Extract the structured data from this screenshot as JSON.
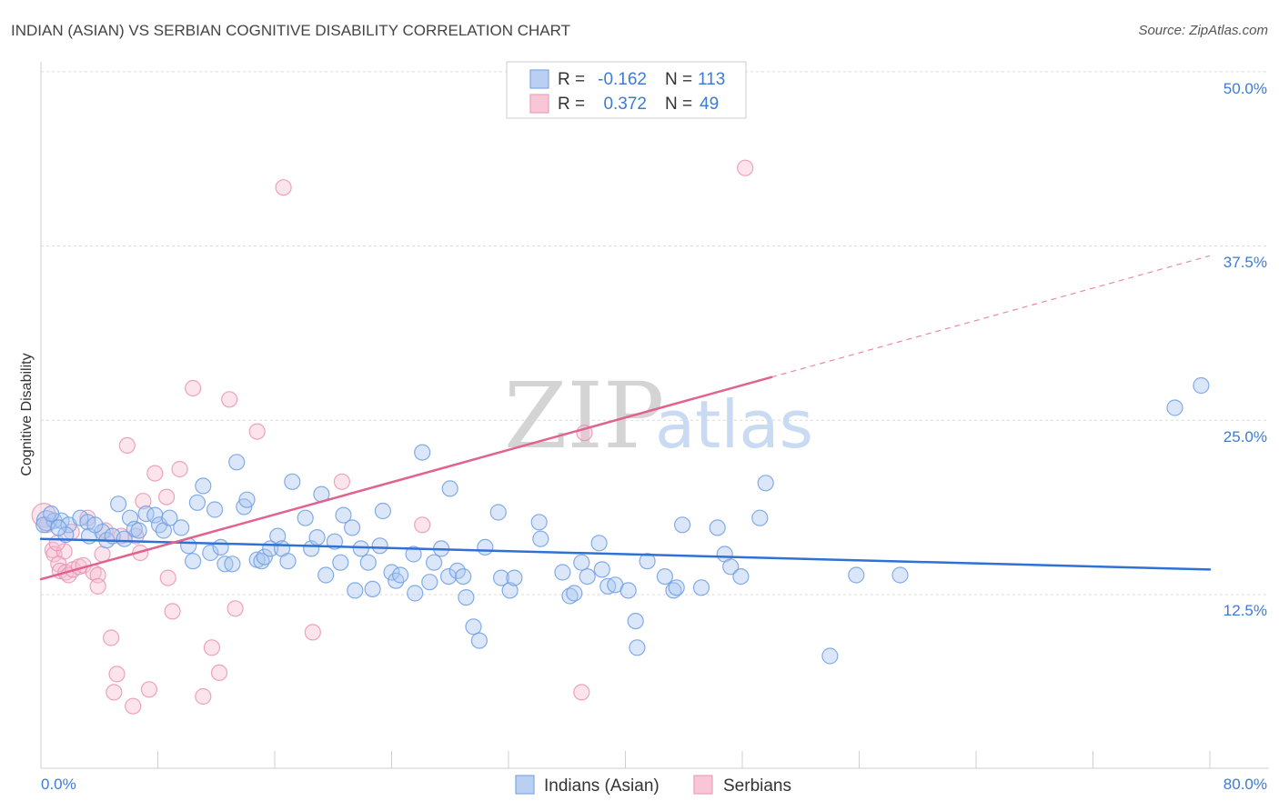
{
  "watermark": {
    "zip": "ZIP",
    "atlas": "atlas"
  },
  "legend": {
    "r_label": "R =",
    "n_label": "N ="
  },
  "colors": {
    "accent": "#3d7bd6",
    "indians_swatch_fill": "#b9d0f3",
    "indians_swatch_stroke": "#7ea8e6",
    "serbians_swatch_fill": "#f8c6d6",
    "serbians_swatch_stroke": "#eaa0b9"
  },
  "chart_data": {
    "type": "scatter",
    "title": "INDIAN (ASIAN) VS SERBIAN COGNITIVE DISABILITY CORRELATION CHART",
    "source": "Source: ZipAtlas.com",
    "xlabel": "",
    "ylabel": "Cognitive Disability",
    "xlim": [
      0,
      80
    ],
    "ylim": [
      0,
      50
    ],
    "x_ticks": [
      0,
      8,
      16,
      24,
      32,
      40,
      48,
      56,
      64,
      72,
      80
    ],
    "x_tick_labels": [
      "0.0%",
      "80.0%"
    ],
    "y_ticks": [
      12.5,
      25,
      37.5,
      50
    ],
    "y_tick_labels": [
      "12.5%",
      "25.0%",
      "37.5%",
      "50.0%"
    ],
    "grid": true,
    "series": [
      {
        "name": "Indians (Asian)",
        "R": "-0.162",
        "N": "113",
        "color": "#6f9fe3",
        "fill": "#a9c6f1",
        "points": [
          [
            0.4,
            17.8
          ],
          [
            0.9,
            17.8
          ],
          [
            1.4,
            17.8
          ],
          [
            0.2,
            17.5
          ],
          [
            1.9,
            17.5
          ],
          [
            2.7,
            18.0
          ],
          [
            3.2,
            17.7
          ],
          [
            1.7,
            16.8
          ],
          [
            3.3,
            16.7
          ],
          [
            4.2,
            17.0
          ],
          [
            4.5,
            16.4
          ],
          [
            4.9,
            16.7
          ],
          [
            5.3,
            19.0
          ],
          [
            6.1,
            18.0
          ],
          [
            6.4,
            17.2
          ],
          [
            6.7,
            17.1
          ],
          [
            5.7,
            16.5
          ],
          [
            7.2,
            18.3
          ],
          [
            7.8,
            18.2
          ],
          [
            8.1,
            17.5
          ],
          [
            8.4,
            17.1
          ],
          [
            8.8,
            18.0
          ],
          [
            9.6,
            17.3
          ],
          [
            10.1,
            16.0
          ],
          [
            10.4,
            14.9
          ],
          [
            11.1,
            20.3
          ],
          [
            10.7,
            19.1
          ],
          [
            11.6,
            15.5
          ],
          [
            11.9,
            18.6
          ],
          [
            12.3,
            15.9
          ],
          [
            12.6,
            14.7
          ],
          [
            13.1,
            14.7
          ],
          [
            13.4,
            22.0
          ],
          [
            13.9,
            18.8
          ],
          [
            14.1,
            19.3
          ],
          [
            14.8,
            15.0
          ],
          [
            15.1,
            14.9
          ],
          [
            15.3,
            15.2
          ],
          [
            15.7,
            15.8
          ],
          [
            16.2,
            16.7
          ],
          [
            16.5,
            15.8
          ],
          [
            16.9,
            14.9
          ],
          [
            17.2,
            20.6
          ],
          [
            18.1,
            18.0
          ],
          [
            18.5,
            15.8
          ],
          [
            18.9,
            16.6
          ],
          [
            19.2,
            19.7
          ],
          [
            19.5,
            13.9
          ],
          [
            20.1,
            16.3
          ],
          [
            20.5,
            14.8
          ],
          [
            20.7,
            18.2
          ],
          [
            21.3,
            17.3
          ],
          [
            21.5,
            12.8
          ],
          [
            21.9,
            15.8
          ],
          [
            22.4,
            14.8
          ],
          [
            22.7,
            12.9
          ],
          [
            23.2,
            16.0
          ],
          [
            23.4,
            18.5
          ],
          [
            24.0,
            14.1
          ],
          [
            24.3,
            13.5
          ],
          [
            24.6,
            13.9
          ],
          [
            25.5,
            15.4
          ],
          [
            25.6,
            12.6
          ],
          [
            26.1,
            22.7
          ],
          [
            26.6,
            13.4
          ],
          [
            26.9,
            14.8
          ],
          [
            27.4,
            15.8
          ],
          [
            27.9,
            13.8
          ],
          [
            28.0,
            20.1
          ],
          [
            28.5,
            14.2
          ],
          [
            28.9,
            13.8
          ],
          [
            29.1,
            12.3
          ],
          [
            29.6,
            10.2
          ],
          [
            30.0,
            9.2
          ],
          [
            30.4,
            15.9
          ],
          [
            31.3,
            18.4
          ],
          [
            31.5,
            13.7
          ],
          [
            32.1,
            12.8
          ],
          [
            32.4,
            13.7
          ],
          [
            34.1,
            17.7
          ],
          [
            34.2,
            16.5
          ],
          [
            35.7,
            14.1
          ],
          [
            36.2,
            12.4
          ],
          [
            36.5,
            12.6
          ],
          [
            37.0,
            14.8
          ],
          [
            37.4,
            13.8
          ],
          [
            38.2,
            16.2
          ],
          [
            38.4,
            14.3
          ],
          [
            38.8,
            13.1
          ],
          [
            39.3,
            13.2
          ],
          [
            40.2,
            12.8
          ],
          [
            40.7,
            10.6
          ],
          [
            40.8,
            8.7
          ],
          [
            41.5,
            14.9
          ],
          [
            42.7,
            13.8
          ],
          [
            43.3,
            12.8
          ],
          [
            43.5,
            13.0
          ],
          [
            43.9,
            17.5
          ],
          [
            45.2,
            13.0
          ],
          [
            46.3,
            17.3
          ],
          [
            46.8,
            15.4
          ],
          [
            47.2,
            14.5
          ],
          [
            47.9,
            13.8
          ],
          [
            49.2,
            18.0
          ],
          [
            49.6,
            20.5
          ],
          [
            54.0,
            8.1
          ],
          [
            55.8,
            13.9
          ],
          [
            58.8,
            13.9
          ],
          [
            77.6,
            25.9
          ],
          [
            79.4,
            27.5
          ],
          [
            0.7,
            18.3
          ],
          [
            1.2,
            17.3
          ],
          [
            3.7,
            17.5
          ]
        ]
      },
      {
        "name": "Serbians",
        "R": "0.372",
        "N": "49",
        "color": "#ea94b3",
        "fill": "#f6bfd2",
        "points": [
          [
            0.2,
            18.2
          ],
          [
            0.4,
            17.5
          ],
          [
            0.8,
            15.7
          ],
          [
            0.9,
            15.4
          ],
          [
            1.6,
            15.6
          ],
          [
            1.2,
            14.7
          ],
          [
            1.3,
            14.2
          ],
          [
            1.7,
            14.1
          ],
          [
            1.9,
            13.9
          ],
          [
            2.2,
            14.3
          ],
          [
            2.6,
            14.5
          ],
          [
            2.9,
            14.6
          ],
          [
            3.2,
            18.0
          ],
          [
            3.6,
            14.1
          ],
          [
            3.9,
            13.9
          ],
          [
            3.9,
            13.1
          ],
          [
            4.2,
            15.4
          ],
          [
            4.4,
            17.1
          ],
          [
            4.8,
            9.4
          ],
          [
            5.2,
            6.8
          ],
          [
            5.0,
            5.5
          ],
          [
            5.5,
            16.7
          ],
          [
            5.9,
            23.2
          ],
          [
            6.3,
            4.5
          ],
          [
            6.8,
            15.5
          ],
          [
            7.0,
            19.2
          ],
          [
            7.4,
            5.7
          ],
          [
            7.8,
            21.2
          ],
          [
            8.6,
            19.5
          ],
          [
            8.7,
            13.7
          ],
          [
            9.0,
            11.3
          ],
          [
            9.5,
            21.5
          ],
          [
            10.4,
            27.3
          ],
          [
            11.1,
            5.2
          ],
          [
            11.7,
            8.7
          ],
          [
            12.2,
            6.9
          ],
          [
            12.9,
            26.5
          ],
          [
            13.3,
            11.5
          ],
          [
            14.8,
            24.2
          ],
          [
            16.6,
            41.7
          ],
          [
            18.6,
            9.8
          ],
          [
            20.6,
            20.6
          ],
          [
            26.1,
            17.5
          ],
          [
            37.0,
            5.5
          ],
          [
            37.2,
            24.1
          ],
          [
            48.2,
            43.1
          ],
          [
            6.5,
            16.7
          ],
          [
            2.1,
            17.0
          ],
          [
            1.1,
            16.2
          ]
        ]
      }
    ],
    "trend_lines": [
      {
        "series_index": 0,
        "color": "#2f72d6",
        "x": [
          0,
          80
        ],
        "y": [
          16.5,
          14.3
        ]
      },
      {
        "series_index": 1,
        "color": "#e2628f",
        "x": [
          0,
          50
        ],
        "y": [
          13.6,
          28.1
        ],
        "dashed_extension": {
          "x": [
            50,
            80
          ],
          "y": [
            28.1,
            36.8
          ]
        }
      }
    ]
  }
}
